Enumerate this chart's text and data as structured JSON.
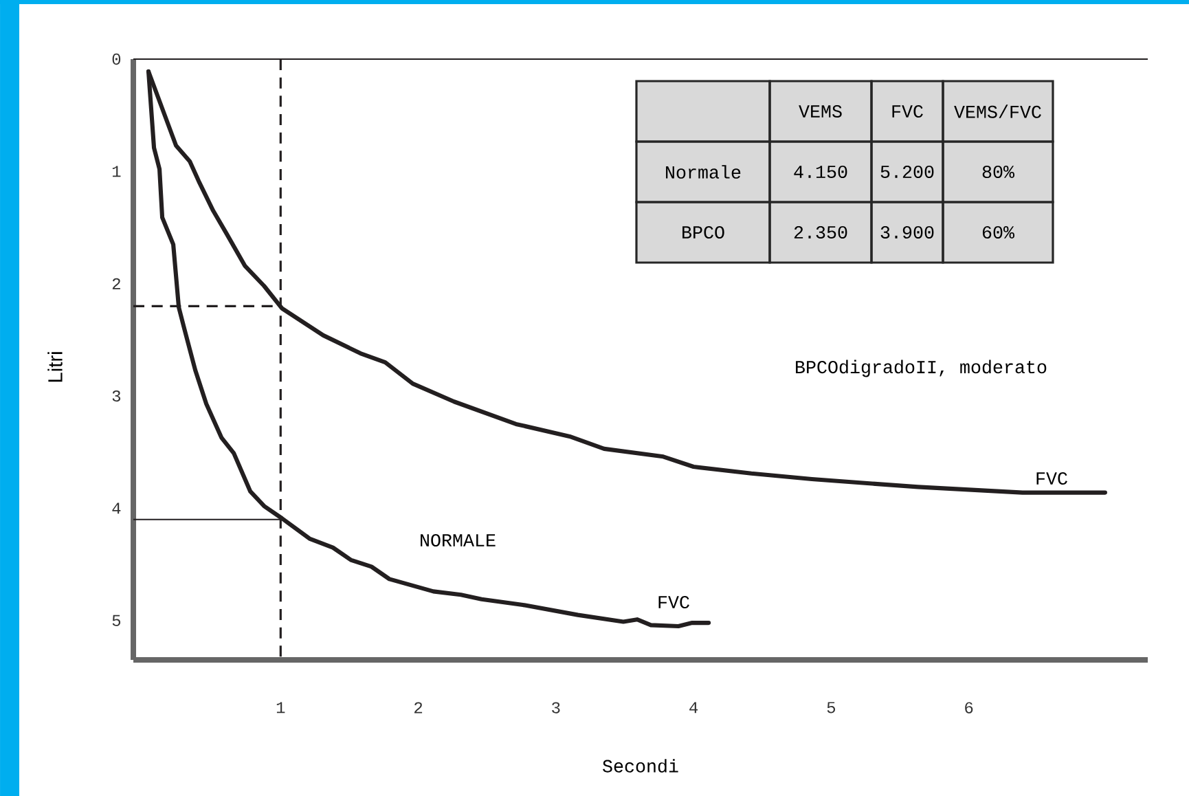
{
  "chart_data": {
    "type": "line",
    "xlabel": "Secondi",
    "ylabel": "Litri",
    "xlim": [
      -0.07,
      7.3
    ],
    "ylim": [
      5.35,
      0
    ],
    "xticks": [
      1,
      2,
      3,
      4,
      5,
      6
    ],
    "yticks": [
      0,
      1,
      2,
      3,
      4,
      5
    ],
    "grid": false,
    "marker": "none",
    "line_style": "solid",
    "series": [
      {
        "color": "#231f20",
        "x": [
          0.04,
          0.08,
          0.12,
          0.14,
          0.22,
          0.26,
          0.3,
          0.38,
          0.46,
          0.57,
          0.66,
          0.78,
          0.88,
          1.01,
          1.21,
          1.38,
          1.51,
          1.66,
          1.79,
          2.11,
          2.31,
          2.46,
          2.76,
          3.16,
          3.49,
          3.59,
          3.69,
          3.89,
          3.99,
          4.11
        ],
        "values": [
          0.11,
          0.79,
          0.98,
          1.41,
          1.65,
          2.21,
          2.4,
          2.77,
          3.07,
          3.37,
          3.51,
          3.85,
          3.98,
          4.09,
          4.27,
          4.35,
          4.46,
          4.52,
          4.63,
          4.74,
          4.77,
          4.81,
          4.86,
          4.95,
          5.01,
          4.99,
          5.04,
          5.05,
          5.02,
          5.02
        ]
      },
      {
        "color": "#231f20",
        "x": [
          0.04,
          0.24,
          0.34,
          0.41,
          0.51,
          0.61,
          0.74,
          0.88,
          1.01,
          1.31,
          1.58,
          1.76,
          1.96,
          2.26,
          2.71,
          3.1,
          3.35,
          3.78,
          4.0,
          4.42,
          4.86,
          5.63,
          6.39,
          6.99
        ],
        "values": [
          0.11,
          0.77,
          0.91,
          1.1,
          1.35,
          1.56,
          1.84,
          2.02,
          2.22,
          2.46,
          2.62,
          2.7,
          2.89,
          3.05,
          3.25,
          3.36,
          3.47,
          3.54,
          3.63,
          3.69,
          3.74,
          3.81,
          3.86,
          3.86
        ]
      }
    ],
    "ref_lines": [
      {
        "axis": "y",
        "value": 0,
        "line_style": "solid",
        "color": "#231f20"
      },
      {
        "axis": "x",
        "value": 1,
        "line_style": "dashed",
        "color": "#231f20"
      },
      {
        "axis": "y",
        "value": 2.2,
        "line_style": "dashed",
        "color": "#231f20"
      },
      {
        "axis": "y",
        "value": 4.1,
        "line_style": "solid",
        "color": "#231f20"
      }
    ],
    "annotations": [
      "NORMALE",
      "FVC",
      "FVC",
      "BPCOdigradoII, moderato",
      "VEMS",
      "FVC",
      "VEMS/FVC",
      "Normale",
      "4.150",
      "5.200",
      "80%",
      "BPCO",
      "2.350",
      "3.900",
      "60%"
    ]
  }
}
